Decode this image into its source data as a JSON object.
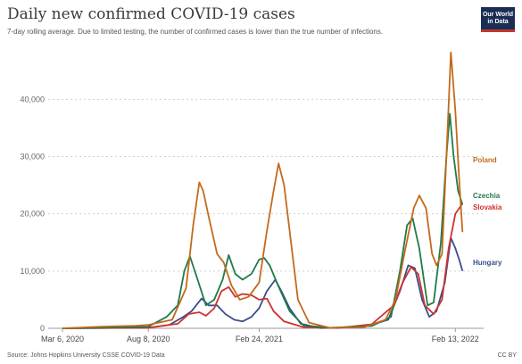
{
  "header": {
    "title": "Daily new confirmed COVID-19 cases",
    "subtitle": "7-day rolling average. Due to limited testing, the number of confirmed cases is lower than the true number of infections."
  },
  "logo": {
    "line1": "Our World",
    "line2": "in Data"
  },
  "footer": {
    "source": "Source: Johns Hopkins University CSSE COVID-19 Data",
    "license": "CC BY"
  },
  "chart_data": {
    "type": "line",
    "title": "Daily new confirmed COVID-19 cases",
    "subtitle": "7-day rolling average. Due to limited testing, the number of confirmed cases is lower than the true number of infections.",
    "xlabel": "",
    "ylabel": "",
    "x_ticks": [
      "Mar 6, 2020",
      "Aug 8, 2020",
      "Feb 24, 2021",
      "Feb 13, 2022"
    ],
    "y_ticks": [
      0,
      10000,
      20000,
      30000,
      40000
    ],
    "y_tick_labels": [
      "0",
      "10,000",
      "20,000",
      "30,000",
      "40,000"
    ],
    "x_range": [
      "2020-03-06",
      "2022-03-20"
    ],
    "ylim": [
      0,
      48000
    ],
    "grid": "horizontal dotted",
    "legend": "labels at line ends (right)",
    "series": [
      {
        "name": "Poland",
        "color": "#c36a1b",
        "points": [
          [
            "2020-03-06",
            0
          ],
          [
            "2020-05-15",
            300
          ],
          [
            "2020-07-15",
            450
          ],
          [
            "2020-08-08",
            600
          ],
          [
            "2020-09-20",
            1500
          ],
          [
            "2020-10-15",
            7000
          ],
          [
            "2020-10-28",
            18000
          ],
          [
            "2020-11-08",
            25500
          ],
          [
            "2020-11-15",
            24000
          ],
          [
            "2020-11-25",
            19500
          ],
          [
            "2020-12-10",
            13000
          ],
          [
            "2020-12-22",
            11500
          ],
          [
            "2021-01-05",
            7500
          ],
          [
            "2021-01-20",
            5000
          ],
          [
            "2021-02-05",
            5500
          ],
          [
            "2021-02-24",
            8000
          ],
          [
            "2021-03-10",
            17000
          ],
          [
            "2021-03-22",
            24000
          ],
          [
            "2021-03-31",
            28800
          ],
          [
            "2021-04-10",
            25000
          ],
          [
            "2021-04-20",
            17000
          ],
          [
            "2021-05-05",
            5000
          ],
          [
            "2021-05-25",
            1000
          ],
          [
            "2021-07-01",
            100
          ],
          [
            "2021-09-01",
            200
          ],
          [
            "2021-10-10",
            1500
          ],
          [
            "2021-10-28",
            5000
          ],
          [
            "2021-11-15",
            14000
          ],
          [
            "2021-11-30",
            21000
          ],
          [
            "2021-12-10",
            23200
          ],
          [
            "2021-12-22",
            21000
          ],
          [
            "2022-01-02",
            13000
          ],
          [
            "2022-01-10",
            11000
          ],
          [
            "2022-01-20",
            13000
          ],
          [
            "2022-01-28",
            30000
          ],
          [
            "2022-02-05",
            48200
          ],
          [
            "2022-02-13",
            38000
          ],
          [
            "2022-02-20",
            26000
          ],
          [
            "2022-02-26",
            16800
          ]
        ]
      },
      {
        "name": "Czechia",
        "color": "#1f7a4a",
        "points": [
          [
            "2020-03-06",
            0
          ],
          [
            "2020-07-15",
            200
          ],
          [
            "2020-08-08",
            300
          ],
          [
            "2020-09-10",
            2000
          ],
          [
            "2020-09-30",
            4000
          ],
          [
            "2020-10-12",
            10000
          ],
          [
            "2020-10-22",
            12600
          ],
          [
            "2020-11-05",
            8500
          ],
          [
            "2020-11-20",
            4000
          ],
          [
            "2020-12-05",
            5000
          ],
          [
            "2020-12-20",
            8500
          ],
          [
            "2020-12-31",
            12800
          ],
          [
            "2021-01-12",
            9500
          ],
          [
            "2021-01-25",
            8500
          ],
          [
            "2021-02-10",
            9500
          ],
          [
            "2021-02-24",
            12000
          ],
          [
            "2021-03-05",
            12300
          ],
          [
            "2021-03-15",
            11000
          ],
          [
            "2021-03-30",
            7500
          ],
          [
            "2021-04-20",
            3000
          ],
          [
            "2021-05-15",
            500
          ],
          [
            "2021-07-01",
            100
          ],
          [
            "2021-09-15",
            400
          ],
          [
            "2021-10-20",
            2000
          ],
          [
            "2021-11-05",
            10000
          ],
          [
            "2021-11-18",
            18000
          ],
          [
            "2021-11-28",
            19200
          ],
          [
            "2021-12-10",
            14000
          ],
          [
            "2021-12-25",
            4000
          ],
          [
            "2022-01-05",
            4500
          ],
          [
            "2022-01-18",
            15000
          ],
          [
            "2022-01-28",
            30000
          ],
          [
            "2022-02-03",
            37500
          ],
          [
            "2022-02-10",
            30000
          ],
          [
            "2022-02-18",
            24000
          ],
          [
            "2022-02-26",
            21600
          ]
        ]
      },
      {
        "name": "Slovakia",
        "color": "#d0312d",
        "points": [
          [
            "2020-03-06",
            0
          ],
          [
            "2020-08-08",
            100
          ],
          [
            "2020-09-30",
            800
          ],
          [
            "2020-10-20",
            2500
          ],
          [
            "2020-11-08",
            2800
          ],
          [
            "2020-11-20",
            2200
          ],
          [
            "2020-12-05",
            3500
          ],
          [
            "2020-12-18",
            6500
          ],
          [
            "2020-12-31",
            7200
          ],
          [
            "2021-01-12",
            5500
          ],
          [
            "2021-01-25",
            6000
          ],
          [
            "2021-02-10",
            5800
          ],
          [
            "2021-02-24",
            5000
          ],
          [
            "2021-03-10",
            5200
          ],
          [
            "2021-03-22",
            3000
          ],
          [
            "2021-04-10",
            1200
          ],
          [
            "2021-05-15",
            200
          ],
          [
            "2021-07-15",
            50
          ],
          [
            "2021-09-15",
            700
          ],
          [
            "2021-10-25",
            4000
          ],
          [
            "2021-11-10",
            8000
          ],
          [
            "2021-11-25",
            10700
          ],
          [
            "2021-12-08",
            9500
          ],
          [
            "2021-12-20",
            4000
          ],
          [
            "2022-01-05",
            2500
          ],
          [
            "2022-01-20",
            5000
          ],
          [
            "2022-02-01",
            14000
          ],
          [
            "2022-02-13",
            20000
          ],
          [
            "2022-02-26",
            21800
          ]
        ]
      },
      {
        "name": "Hungary",
        "color": "#3a4f8a",
        "points": [
          [
            "2020-03-06",
            0
          ],
          [
            "2020-08-08",
            100
          ],
          [
            "2020-09-15",
            600
          ],
          [
            "2020-10-10",
            2000
          ],
          [
            "2020-10-25",
            3000
          ],
          [
            "2020-11-12",
            5200
          ],
          [
            "2020-11-25",
            4000
          ],
          [
            "2020-12-10",
            4000
          ],
          [
            "2020-12-25",
            2500
          ],
          [
            "2021-01-10",
            1500
          ],
          [
            "2021-01-25",
            1200
          ],
          [
            "2021-02-10",
            2000
          ],
          [
            "2021-02-24",
            3500
          ],
          [
            "2021-03-10",
            6500
          ],
          [
            "2021-03-25",
            8500
          ],
          [
            "2021-04-05",
            6500
          ],
          [
            "2021-04-20",
            3500
          ],
          [
            "2021-05-10",
            800
          ],
          [
            "2021-06-15",
            50
          ],
          [
            "2021-09-01",
            200
          ],
          [
            "2021-10-15",
            1500
          ],
          [
            "2021-11-05",
            6500
          ],
          [
            "2021-11-20",
            11000
          ],
          [
            "2021-12-02",
            10500
          ],
          [
            "2021-12-15",
            5000
          ],
          [
            "2021-12-28",
            2000
          ],
          [
            "2022-01-10",
            3000
          ],
          [
            "2022-01-25",
            8000
          ],
          [
            "2022-02-05",
            15800
          ],
          [
            "2022-02-13",
            14000
          ],
          [
            "2022-02-20",
            12000
          ],
          [
            "2022-02-26",
            10000
          ]
        ]
      }
    ]
  }
}
